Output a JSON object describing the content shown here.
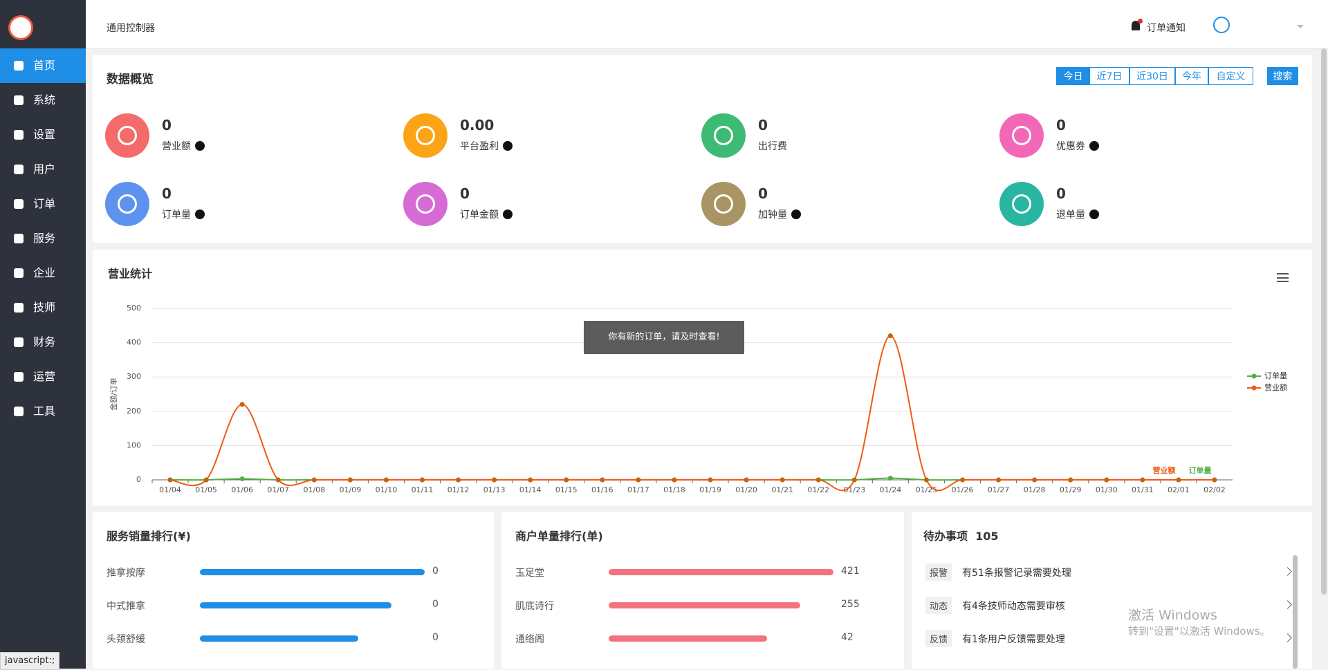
{
  "sidebar": {
    "menu": [
      "首页",
      "系统",
      "设置",
      "用户",
      "订单",
      "服务",
      "企业",
      "技师",
      "财务",
      "运营",
      "工具"
    ]
  },
  "header": {
    "title": "通用控制器",
    "notice": "订单通知"
  },
  "overview": {
    "title": "数据概览",
    "ranges": [
      "今日",
      "近7日",
      "近30日",
      "今年",
      "自定义"
    ],
    "search": "搜索",
    "stats": [
      {
        "value": 0,
        "label": "营业额",
        "help": true,
        "color": "#f46b6b"
      },
      {
        "value": "0.00",
        "label": "平台盈利",
        "help": true,
        "color": "#fba417"
      },
      {
        "value": 0,
        "label": "出行费",
        "help": false,
        "color": "#3dba73"
      },
      {
        "value": 0,
        "label": "优惠券",
        "help": true,
        "color": "#f368b6"
      },
      {
        "value": 0,
        "label": "订单量",
        "help": true,
        "color": "#5d93ee"
      },
      {
        "value": 0,
        "label": "订单金额",
        "help": true,
        "color": "#d66bd6"
      },
      {
        "value": 0,
        "label": "加钟量",
        "help": true,
        "color": "#a89563"
      },
      {
        "value": 0,
        "label": "退单量",
        "help": true,
        "color": "#28b5a2"
      }
    ]
  },
  "chart_data": {
    "type": "line",
    "title": "营业统计",
    "y_label": "金额/订单",
    "categories": [
      "01/04",
      "01/05",
      "01/06",
      "01/07",
      "01/08",
      "01/09",
      "01/10",
      "01/11",
      "01/12",
      "01/13",
      "01/14",
      "01/15",
      "01/16",
      "01/17",
      "01/18",
      "01/19",
      "01/20",
      "01/21",
      "01/22",
      "01/23",
      "01/24",
      "01/25",
      "01/26",
      "01/27",
      "01/28",
      "01/29",
      "01/30",
      "01/31",
      "02/01",
      "02/02"
    ],
    "series": [
      {
        "name": "订单量",
        "color": "#52b043",
        "values": [
          0,
          0,
          3,
          0,
          0,
          0,
          0,
          0,
          0,
          0,
          0,
          0,
          0,
          0,
          0,
          0,
          0,
          0,
          0,
          0,
          5,
          0,
          0,
          0,
          0,
          0,
          0,
          0,
          0,
          0
        ]
      },
      {
        "name": "营业额",
        "color": "#f05a14",
        "values": [
          0,
          0,
          220,
          0,
          0,
          0,
          0,
          0,
          0,
          0,
          0,
          0,
          0,
          0,
          0,
          0,
          0,
          0,
          0,
          0,
          420,
          0,
          0,
          0,
          0,
          0,
          0,
          0,
          0,
          0
        ]
      }
    ],
    "ylim": [
      0,
      500
    ],
    "yticks": [
      0,
      100,
      200,
      300,
      400,
      500
    ],
    "grid": true,
    "smooth": true,
    "legend": "right"
  },
  "service_rank": {
    "title": "服务销量排行(¥)",
    "rows": [
      {
        "name": "推拿按摩",
        "value": 0
      },
      {
        "name": "中式推拿",
        "value": 0
      },
      {
        "name": "头颈舒缓",
        "value": 0
      }
    ]
  },
  "merchant_rank": {
    "title": "商户单量排行(单)",
    "rows": [
      {
        "name": "玉足堂",
        "value": 421
      },
      {
        "name": "肌底诗行",
        "value": 255
      },
      {
        "name": "通络阁",
        "value": 42
      }
    ]
  },
  "todo": {
    "title": "待办事项",
    "count": 105,
    "items": [
      {
        "tag": "报警",
        "text": "有51条报警记录需要处理"
      },
      {
        "tag": "动态",
        "text": "有4条技师动态需要审核"
      },
      {
        "tag": "反馈",
        "text": "有1条用户反馈需要处理"
      }
    ]
  },
  "toast": "你有新的订单，请及时查看!",
  "watermark": {
    "line1": "激活 Windows",
    "line2": "转到\"设置\"以激活 Windows。"
  },
  "status": "javascript:;"
}
